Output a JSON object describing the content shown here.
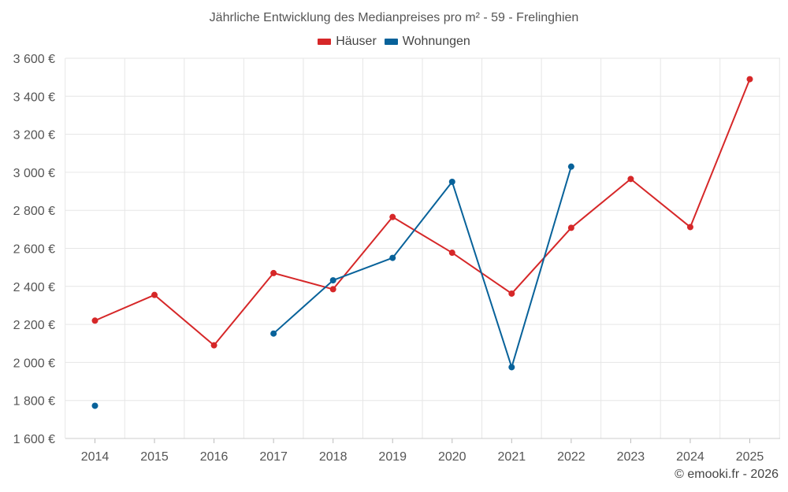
{
  "chart_data": {
    "type": "line",
    "title": "Jährliche Entwicklung des Medianpreises pro m² - 59 - Frelinghien",
    "categories": [
      "2014",
      "2015",
      "2016",
      "2017",
      "2018",
      "2019",
      "2020",
      "2021",
      "2022",
      "2023",
      "2024",
      "2025"
    ],
    "series": [
      {
        "name": "Häuser",
        "color": "#d62728",
        "values": [
          2220,
          2355,
          2090,
          2470,
          2385,
          2765,
          2577,
          2362,
          2708,
          2965,
          2712,
          3490
        ]
      },
      {
        "name": "Wohnungen",
        "color": "#08629a",
        "values": [
          1772,
          null,
          null,
          2152,
          2432,
          2550,
          2950,
          1975,
          3030,
          null,
          null,
          null
        ]
      }
    ],
    "ylim": [
      1600,
      3600
    ],
    "yticks": [
      1600,
      1800,
      2000,
      2200,
      2400,
      2600,
      2800,
      3000,
      3200,
      3400,
      3600
    ],
    "ytick_labels": [
      "1 600 €",
      "1 800 €",
      "2 000 €",
      "2 200 €",
      "2 400 €",
      "2 600 €",
      "2 800 €",
      "3 000 €",
      "3 200 €",
      "3 400 €",
      "3 600 €"
    ],
    "xlabel": "",
    "ylabel": "",
    "grid": true,
    "legend_position": "top-center"
  },
  "copyright": "© emooki.fr - 2026"
}
